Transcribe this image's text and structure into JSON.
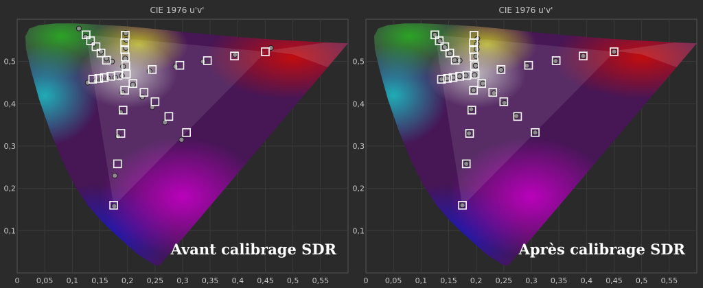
{
  "chart_data": [
    {
      "type": "scatter",
      "title": "CIE 1976 u'v'",
      "caption": "Avant calibrage SDR",
      "xlim": [
        0,
        0.6
      ],
      "ylim": [
        0,
        0.6
      ],
      "xticks": [
        "0",
        "0,05",
        "0,1",
        "0,15",
        "0,2",
        "0,25",
        "0,3",
        "0,35",
        "0,4",
        "0,45",
        "0,5",
        "0,55"
      ],
      "yticks": [
        "0,1",
        "0,2",
        "0,3",
        "0,4",
        "0,5"
      ],
      "grid": true,
      "targets": [
        [
          0.125,
          0.563
        ],
        [
          0.133,
          0.549
        ],
        [
          0.143,
          0.535
        ],
        [
          0.152,
          0.52
        ],
        [
          0.162,
          0.503
        ],
        [
          0.196,
          0.562
        ],
        [
          0.195,
          0.544
        ],
        [
          0.195,
          0.528
        ],
        [
          0.196,
          0.511
        ],
        [
          0.197,
          0.49
        ],
        [
          0.137,
          0.458
        ],
        [
          0.148,
          0.46
        ],
        [
          0.158,
          0.462
        ],
        [
          0.17,
          0.465
        ],
        [
          0.183,
          0.467
        ],
        [
          0.198,
          0.47
        ],
        [
          0.245,
          0.481
        ],
        [
          0.295,
          0.491
        ],
        [
          0.345,
          0.502
        ],
        [
          0.394,
          0.513
        ],
        [
          0.45,
          0.523
        ],
        [
          0.21,
          0.448
        ],
        [
          0.23,
          0.427
        ],
        [
          0.25,
          0.405
        ],
        [
          0.275,
          0.37
        ],
        [
          0.307,
          0.332
        ],
        [
          0.195,
          0.432
        ],
        [
          0.192,
          0.385
        ],
        [
          0.188,
          0.33
        ],
        [
          0.182,
          0.258
        ],
        [
          0.175,
          0.16
        ]
      ],
      "measured": [
        [
          0.112,
          0.578
        ],
        [
          0.124,
          0.558
        ],
        [
          0.138,
          0.541
        ],
        [
          0.152,
          0.523
        ],
        [
          0.162,
          0.507
        ],
        [
          0.197,
          0.567
        ],
        [
          0.198,
          0.551
        ],
        [
          0.197,
          0.532
        ],
        [
          0.196,
          0.507
        ],
        [
          0.192,
          0.488
        ],
        [
          0.172,
          0.5
        ],
        [
          0.128,
          0.45
        ],
        [
          0.142,
          0.453
        ],
        [
          0.153,
          0.457
        ],
        [
          0.165,
          0.46
        ],
        [
          0.178,
          0.462
        ],
        [
          0.19,
          0.466
        ],
        [
          0.24,
          0.477
        ],
        [
          0.287,
          0.488
        ],
        [
          0.337,
          0.5
        ],
        [
          0.395,
          0.516
        ],
        [
          0.46,
          0.532
        ],
        [
          0.21,
          0.445
        ],
        [
          0.227,
          0.416
        ],
        [
          0.245,
          0.392
        ],
        [
          0.268,
          0.356
        ],
        [
          0.298,
          0.315
        ],
        [
          0.191,
          0.426
        ],
        [
          0.188,
          0.38
        ],
        [
          0.183,
          0.323
        ],
        [
          0.177,
          0.23
        ],
        [
          0.176,
          0.158
        ]
      ]
    },
    {
      "type": "scatter",
      "title": "CIE 1976 u'v'",
      "caption": "Après calibrage SDR",
      "xlim": [
        0,
        0.6
      ],
      "ylim": [
        0,
        0.6
      ],
      "xticks": [
        "0",
        "0,05",
        "0,1",
        "0,15",
        "0,2",
        "0,25",
        "0,3",
        "0,35",
        "0,4",
        "0,45",
        "0,5",
        "0,55"
      ],
      "yticks": [
        "0,1",
        "0,2",
        "0,3",
        "0,4",
        "0,5"
      ],
      "grid": true,
      "targets": [
        [
          0.125,
          0.563
        ],
        [
          0.133,
          0.549
        ],
        [
          0.143,
          0.535
        ],
        [
          0.152,
          0.52
        ],
        [
          0.162,
          0.503
        ],
        [
          0.196,
          0.562
        ],
        [
          0.195,
          0.544
        ],
        [
          0.195,
          0.528
        ],
        [
          0.196,
          0.511
        ],
        [
          0.197,
          0.49
        ],
        [
          0.137,
          0.458
        ],
        [
          0.148,
          0.46
        ],
        [
          0.158,
          0.462
        ],
        [
          0.17,
          0.465
        ],
        [
          0.183,
          0.467
        ],
        [
          0.198,
          0.47
        ],
        [
          0.245,
          0.481
        ],
        [
          0.295,
          0.491
        ],
        [
          0.345,
          0.502
        ],
        [
          0.394,
          0.513
        ],
        [
          0.45,
          0.523
        ],
        [
          0.21,
          0.448
        ],
        [
          0.23,
          0.427
        ],
        [
          0.25,
          0.405
        ],
        [
          0.275,
          0.37
        ],
        [
          0.307,
          0.332
        ],
        [
          0.195,
          0.432
        ],
        [
          0.192,
          0.385
        ],
        [
          0.188,
          0.33
        ],
        [
          0.182,
          0.258
        ],
        [
          0.175,
          0.16
        ]
      ],
      "measured": [
        [
          0.125,
          0.563
        ],
        [
          0.134,
          0.548
        ],
        [
          0.143,
          0.534
        ],
        [
          0.152,
          0.519
        ],
        [
          0.161,
          0.503
        ],
        [
          0.202,
          0.554
        ],
        [
          0.201,
          0.541
        ],
        [
          0.201,
          0.529
        ],
        [
          0.2,
          0.512
        ],
        [
          0.199,
          0.49
        ],
        [
          0.17,
          0.502
        ],
        [
          0.137,
          0.458
        ],
        [
          0.147,
          0.46
        ],
        [
          0.158,
          0.462
        ],
        [
          0.17,
          0.465
        ],
        [
          0.181,
          0.467
        ],
        [
          0.197,
          0.468
        ],
        [
          0.245,
          0.48
        ],
        [
          0.292,
          0.49
        ],
        [
          0.344,
          0.501
        ],
        [
          0.394,
          0.513
        ],
        [
          0.45,
          0.523
        ],
        [
          0.212,
          0.448
        ],
        [
          0.232,
          0.425
        ],
        [
          0.251,
          0.402
        ],
        [
          0.273,
          0.371
        ],
        [
          0.307,
          0.332
        ],
        [
          0.195,
          0.432
        ],
        [
          0.191,
          0.387
        ],
        [
          0.187,
          0.33
        ],
        [
          0.182,
          0.258
        ],
        [
          0.175,
          0.16
        ]
      ]
    }
  ]
}
